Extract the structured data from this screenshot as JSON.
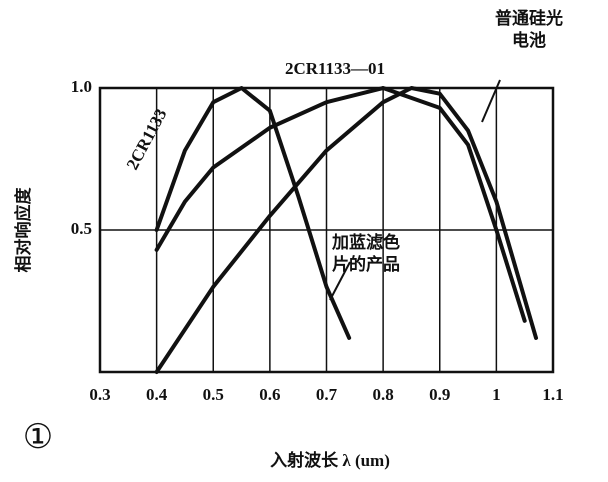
{
  "chart_data": {
    "type": "line",
    "xlabel": "入射波长 λ (um)",
    "ylabel": "相对响应度",
    "panel_label": "①",
    "xlim": [
      0.3,
      1.1
    ],
    "xticks": [
      0.3,
      0.4,
      0.5,
      0.6,
      0.7,
      0.8,
      0.9,
      1.0,
      1.1
    ],
    "ylim": [
      0,
      1
    ],
    "yticks": [
      0.5,
      {
        "value": 1,
        "label": "1.0"
      }
    ],
    "grid": true,
    "color": "#111111",
    "series": [
      {
        "name": "加蓝滤色片的产品",
        "label": "2CR1133",
        "color": "#111111",
        "x": [
          0.4,
          0.45,
          0.5,
          0.55,
          0.6,
          0.65,
          0.7,
          0.74
        ],
        "values": [
          0.5,
          0.78,
          0.95,
          1.0,
          0.92,
          0.62,
          0.3,
          0.12
        ]
      },
      {
        "name": "2CR1133—01",
        "color": "#111111",
        "x": [
          0.4,
          0.45,
          0.5,
          0.6,
          0.7,
          0.8,
          0.9,
          0.95,
          1.0,
          1.05
        ],
        "values": [
          0.43,
          0.6,
          0.72,
          0.86,
          0.95,
          1.0,
          0.93,
          0.8,
          0.5,
          0.18
        ]
      },
      {
        "name": "普通硅光电池",
        "color": "#111111",
        "x": [
          0.4,
          0.5,
          0.6,
          0.7,
          0.8,
          0.85,
          0.9,
          0.95,
          1.0,
          1.07
        ],
        "values": [
          0.0,
          0.3,
          0.55,
          0.78,
          0.95,
          1.0,
          0.98,
          0.85,
          0.6,
          0.12
        ]
      }
    ]
  }
}
